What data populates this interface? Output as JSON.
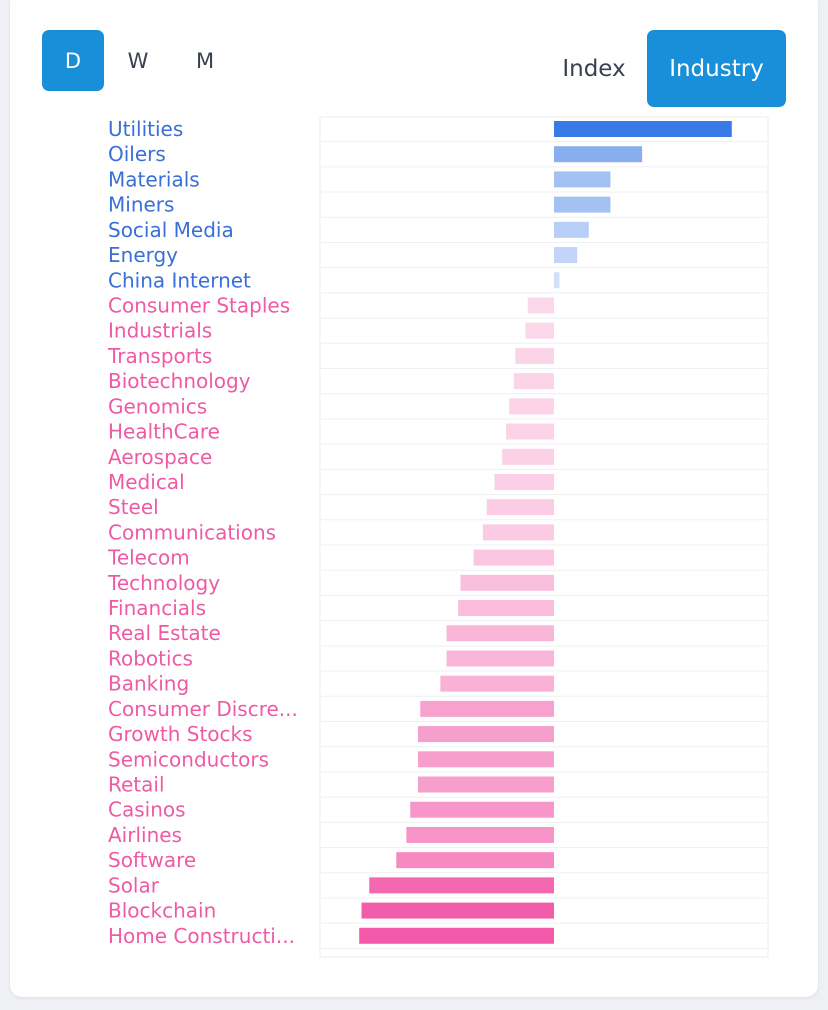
{
  "periods": {
    "d": "D",
    "w": "W",
    "m": "M"
  },
  "modes": {
    "index": "Index",
    "industry": "Industry"
  },
  "colors": {
    "accent": "#1a8fd9",
    "positive": "#3a7ae6",
    "negative": "#f25aa9"
  },
  "chart_data": {
    "type": "bar",
    "orientation": "horizontal",
    "title": "",
    "xlabel": "",
    "ylabel": "",
    "grid": true,
    "xlim": [
      -3.0,
      2.8
    ],
    "categories": [
      "Utilities",
      "Oilers",
      "Materials",
      "Miners",
      "Social Media",
      "Energy",
      "China Internet",
      "Consumer Staples",
      "Industrials",
      "Transports",
      "Biotechnology",
      "Genomics",
      "HealthCare",
      "Aerospace",
      "Medical",
      "Steel",
      "Communications",
      "Telecom",
      "Technology",
      "Financials",
      "Real Estate",
      "Robotics",
      "Banking",
      "Consumer Discre...",
      "Growth Stocks",
      "Semiconductors",
      "Retail",
      "Casinos",
      "Airlines",
      "Software",
      "Solar",
      "Blockchain",
      "Home Constructi..."
    ],
    "values": [
      2.3,
      1.14,
      0.73,
      0.73,
      0.45,
      0.3,
      0.07,
      -0.34,
      -0.37,
      -0.5,
      -0.52,
      -0.58,
      -0.62,
      -0.67,
      -0.77,
      -0.87,
      -0.92,
      -1.04,
      -1.21,
      -1.24,
      -1.39,
      -1.39,
      -1.47,
      -1.73,
      -1.76,
      -1.76,
      -1.76,
      -1.86,
      -1.91,
      -2.04,
      -2.39,
      -2.49,
      -2.52
    ]
  }
}
